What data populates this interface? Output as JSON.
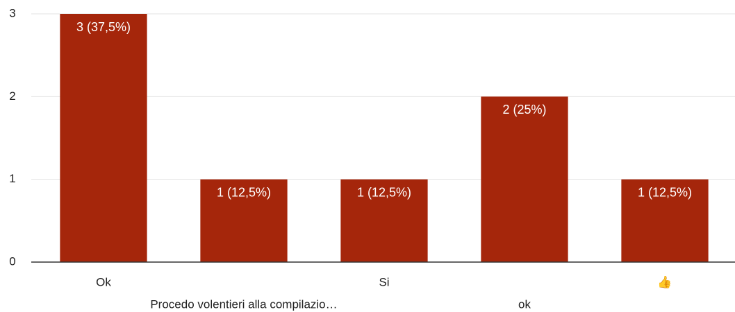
{
  "chart_data": {
    "type": "bar",
    "categories": [
      "Ok",
      "Procedo volentieri alla compilazio…",
      "Si",
      "ok",
      "👍"
    ],
    "values": [
      3,
      1,
      1,
      2,
      1
    ],
    "value_labels": [
      "3 (37,5%)",
      "1 (12,5%)",
      "1 (12,5%)",
      "2 (25%)",
      "1 (12,5%)"
    ],
    "color": "#a5260b",
    "ylim": [
      0,
      3
    ],
    "yticks": [
      0,
      1,
      2,
      3
    ],
    "grid": true
  }
}
